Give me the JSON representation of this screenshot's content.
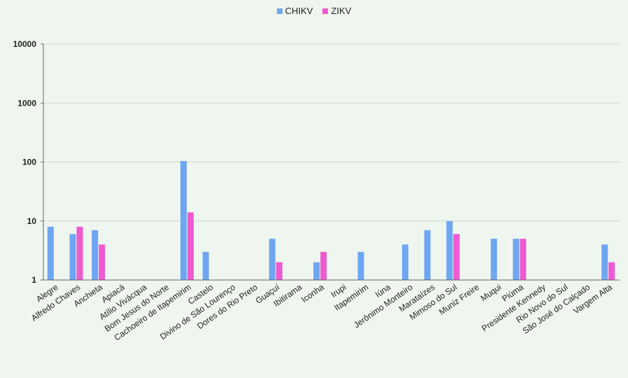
{
  "colors": {
    "background": "#eef6ef",
    "chikv": "#6fa6f2",
    "zikv": "#ee5bd0"
  },
  "chart_data": {
    "type": "bar",
    "yscale": "log",
    "ylim": [
      1,
      10000
    ],
    "yticks": [
      1,
      10,
      100,
      1000,
      10000
    ],
    "ytick_labels": [
      "1",
      "10",
      "100",
      "1000",
      "10000"
    ],
    "grid": true,
    "legend_position": "top-center",
    "categories": [
      "Alegre",
      "Alfredo Chaves",
      "Anchieta",
      "Apiacá",
      "Atílio Vivácqua",
      "Bom Jesus do Norte",
      "Cachoeiro de Itapemirim",
      "Castelo",
      "Divino de São Lourenço",
      "Dores do Rio Preto",
      "Guaçuí",
      "Ibitirama",
      "Iconha",
      "Irupi",
      "Itapemirim",
      "Iúna",
      "Jerônimo Monteiro",
      "Marataízes",
      "Mimoso do Sul",
      "Muniz Freire",
      "Muqui",
      "Piúma",
      "Presidente Kennedy",
      "Rio Novo do Sul",
      "São José do Calçado",
      "Vargem Alta"
    ],
    "series": [
      {
        "name": "CHIKV",
        "values": [
          8,
          6,
          7,
          null,
          null,
          null,
          104,
          3,
          null,
          null,
          5,
          null,
          2,
          null,
          3,
          null,
          4,
          7,
          10,
          null,
          5,
          5,
          null,
          null,
          null,
          4
        ]
      },
      {
        "name": "ZIKV",
        "values": [
          null,
          8,
          4,
          null,
          null,
          null,
          14,
          null,
          null,
          null,
          2,
          null,
          3,
          null,
          null,
          null,
          null,
          null,
          6,
          null,
          null,
          5,
          null,
          null,
          null,
          2
        ]
      }
    ]
  }
}
